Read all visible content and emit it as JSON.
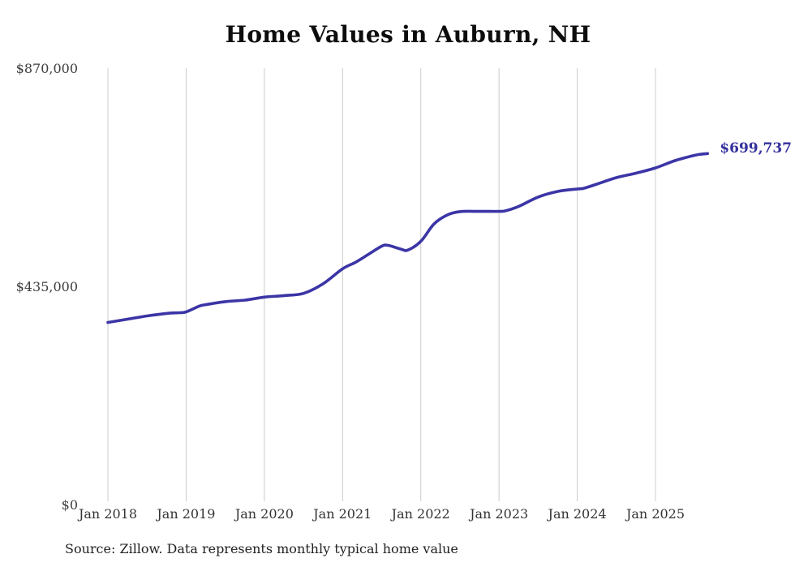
{
  "colors": {
    "line": "#3b35a6",
    "end_label": "#34309c",
    "gridline": "#cccccc",
    "title_text": "#0d0d0d",
    "axis_text": "#3d3d3d"
  },
  "chart_data": {
    "type": "line",
    "title": "Home Values in Auburn, NH",
    "footnote": "Source: Zillow. Data represents monthly typical home value",
    "end_label": "$699,737",
    "xlabel": "",
    "ylabel": "",
    "ylim": [
      0,
      870000
    ],
    "grid": "vertical-only",
    "legend_position": "none",
    "x_tick_labels": [
      "Jan 2018",
      "Jan 2019",
      "Jan 2020",
      "Jan 2021",
      "Jan 2022",
      "Jan 2023",
      "Jan 2024",
      "Jan 2025"
    ],
    "y_ticks": [
      {
        "label": "$870,000",
        "value": 870000
      },
      {
        "label": "$435,000",
        "value": 435000
      },
      {
        "label": "$0",
        "value": 0
      }
    ],
    "series": [
      {
        "name": "Monthly typical home value",
        "points": [
          {
            "date": "2018-01",
            "value": 363000
          },
          {
            "date": "2018-04",
            "value": 369500
          },
          {
            "date": "2018-07",
            "value": 376000
          },
          {
            "date": "2018-10",
            "value": 381000
          },
          {
            "date": "2018-12",
            "value": 382500
          },
          {
            "date": "2019-01",
            "value": 384000
          },
          {
            "date": "2019-03",
            "value": 395500
          },
          {
            "date": "2019-04",
            "value": 398500
          },
          {
            "date": "2019-07",
            "value": 404500
          },
          {
            "date": "2019-10",
            "value": 407500
          },
          {
            "date": "2020-01",
            "value": 413500
          },
          {
            "date": "2020-04",
            "value": 416500
          },
          {
            "date": "2020-07",
            "value": 421000
          },
          {
            "date": "2020-10",
            "value": 440000
          },
          {
            "date": "2021-01",
            "value": 470000
          },
          {
            "date": "2021-03",
            "value": 483000
          },
          {
            "date": "2021-05",
            "value": 499000
          },
          {
            "date": "2021-07",
            "value": 515000
          },
          {
            "date": "2021-08",
            "value": 516700
          },
          {
            "date": "2021-10",
            "value": 509000
          },
          {
            "date": "2021-11",
            "value": 507300
          },
          {
            "date": "2022-01",
            "value": 524700
          },
          {
            "date": "2022-03",
            "value": 559000
          },
          {
            "date": "2022-05",
            "value": 577000
          },
          {
            "date": "2022-07",
            "value": 584000
          },
          {
            "date": "2022-10",
            "value": 584500
          },
          {
            "date": "2023-01",
            "value": 584500
          },
          {
            "date": "2023-02",
            "value": 585500
          },
          {
            "date": "2023-04",
            "value": 594300
          },
          {
            "date": "2023-07",
            "value": 613000
          },
          {
            "date": "2023-10",
            "value": 624200
          },
          {
            "date": "2024-01",
            "value": 629100
          },
          {
            "date": "2024-02",
            "value": 630500
          },
          {
            "date": "2024-04",
            "value": 638800
          },
          {
            "date": "2024-07",
            "value": 651700
          },
          {
            "date": "2024-10",
            "value": 660600
          },
          {
            "date": "2025-01",
            "value": 671100
          },
          {
            "date": "2025-04",
            "value": 685700
          },
          {
            "date": "2025-07",
            "value": 696200
          },
          {
            "date": "2025-08",
            "value": 698500
          },
          {
            "date": "2025-09",
            "value": 699737
          }
        ]
      }
    ]
  }
}
